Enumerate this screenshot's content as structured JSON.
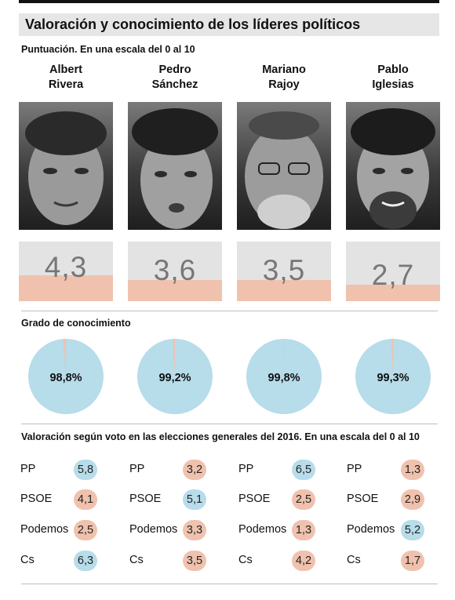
{
  "header": {
    "title": "Valoración y conocimiento de los líderes políticos",
    "score_subtitle": "Puntuación. En una escala del 0 al 10",
    "knowledge_subtitle": "Grado de conocimiento",
    "vote_subtitle": "Valoración según voto en las elecciones generales del 2016. En una escala del 0 al 10"
  },
  "colors": {
    "high": "#b7dcea",
    "low": "#f0c2ae",
    "score_bg": "#e3e3e3",
    "pie_main": "#b7dcea",
    "pie_rest": "#f0c2ae"
  },
  "leaders": [
    {
      "name_line1": "Albert",
      "name_line2": "Rivera",
      "score_label": "4,3",
      "knowledge_label": "98,8%",
      "photo": "albert-rivera-portrait"
    },
    {
      "name_line1": "Pedro",
      "name_line2": "Sánchez",
      "score_label": "3,6",
      "knowledge_label": "99,2%",
      "photo": "pedro-sanchez-portrait"
    },
    {
      "name_line1": "Mariano",
      "name_line2": "Rajoy",
      "score_label": "3,5",
      "knowledge_label": "99,8%",
      "photo": "mariano-rajoy-portrait"
    },
    {
      "name_line1": "Pablo",
      "name_line2": "Iglesias",
      "score_label": "2,7",
      "knowledge_label": "99,3%",
      "photo": "pablo-iglesias-portrait"
    }
  ],
  "voters": [
    {
      "party": "PP",
      "labels": [
        "5,8",
        "3,2",
        "6,5",
        "1,3"
      ],
      "highlight": [
        true,
        false,
        true,
        false
      ]
    },
    {
      "party": "PSOE",
      "labels": [
        "4,1",
        "5,1",
        "2,5",
        "2,9"
      ],
      "highlight": [
        false,
        true,
        false,
        false
      ]
    },
    {
      "party": "Podemos",
      "labels": [
        "2,5",
        "3,3",
        "1,3",
        "5,2"
      ],
      "highlight": [
        false,
        false,
        false,
        true
      ]
    },
    {
      "party": "Cs",
      "labels": [
        "6,3",
        "3,5",
        "4,2",
        "1,7"
      ],
      "highlight": [
        true,
        false,
        false,
        false
      ]
    }
  ],
  "chart_data": [
    {
      "type": "bar",
      "categories": [
        "Albert Rivera",
        "Pedro Sánchez",
        "Mariano Rajoy",
        "Pablo Iglesias"
      ],
      "values": [
        4.3,
        3.6,
        3.5,
        2.7
      ],
      "title": "Puntuación. En una escala del 0 al 10",
      "ylim": [
        0,
        10
      ]
    },
    {
      "type": "pie",
      "categories": [
        "Albert Rivera",
        "Pedro Sánchez",
        "Mariano Rajoy",
        "Pablo Iglesias"
      ],
      "values": [
        98.8,
        99.2,
        99.8,
        99.3
      ],
      "title": "Grado de conocimiento"
    },
    {
      "type": "table",
      "title": "Valoración según voto en las elecciones generales del 2016. En una escala del 0 al 10",
      "columns": [
        "Albert Rivera",
        "Pedro Sánchez",
        "Mariano Rajoy",
        "Pablo Iglesias"
      ],
      "rows": [
        "PP",
        "PSOE",
        "Podemos",
        "Cs"
      ],
      "values": [
        [
          5.8,
          3.2,
          6.5,
          1.3
        ],
        [
          4.1,
          5.1,
          2.5,
          2.9
        ],
        [
          2.5,
          3.3,
          1.3,
          5.2
        ],
        [
          6.3,
          3.5,
          4.2,
          1.7
        ]
      ]
    }
  ]
}
